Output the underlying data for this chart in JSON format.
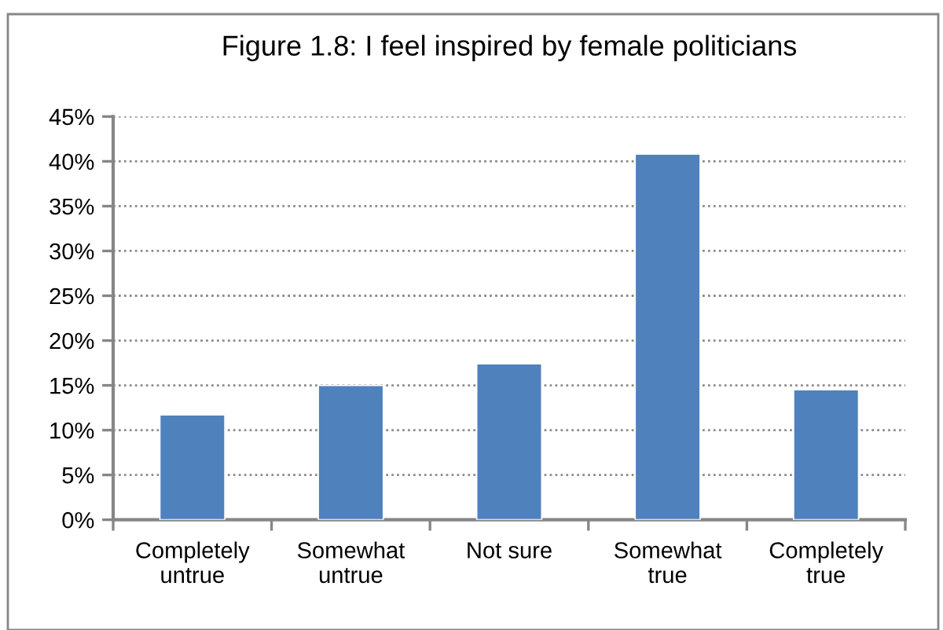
{
  "chart_data": {
    "type": "bar",
    "title": "Figure 1.8: I feel inspired by female politicians",
    "categories": [
      "Completely\nuntrue",
      "Somewhat\nuntrue",
      "Not sure",
      "Somewhat\ntrue",
      "Completely\ntrue"
    ],
    "values": [
      11.7,
      15.0,
      17.4,
      40.8,
      14.5
    ],
    "color": "#4f81bd",
    "ylim": [
      0,
      45
    ],
    "yticks": [
      {
        "value": 0,
        "label": "0%"
      },
      {
        "value": 5,
        "label": "5%"
      },
      {
        "value": 10,
        "label": "10%"
      },
      {
        "value": 15,
        "label": "15%"
      },
      {
        "value": 20,
        "label": "20%"
      },
      {
        "value": 25,
        "label": "25%"
      },
      {
        "value": 30,
        "label": "30%"
      },
      {
        "value": 35,
        "label": "35%"
      },
      {
        "value": 40,
        "label": "40%"
      },
      {
        "value": 45,
        "label": "45%"
      }
    ],
    "grid": "y",
    "legend": false
  }
}
